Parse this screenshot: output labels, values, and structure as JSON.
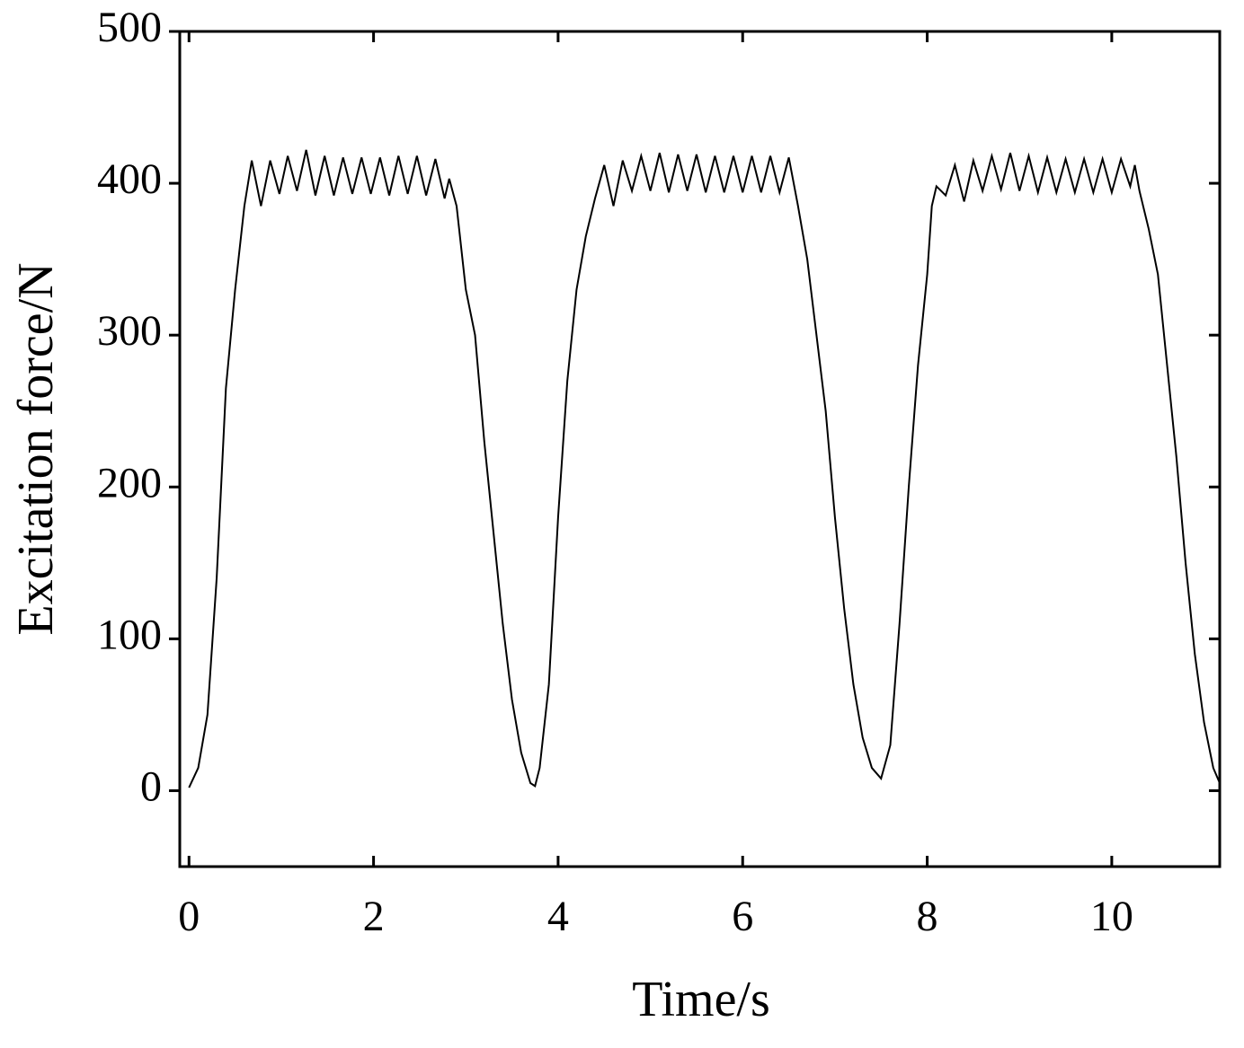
{
  "chart_data": {
    "type": "line",
    "x_label": "Time/s",
    "y_label": "Excitation force/N",
    "x": [
      0,
      0.1,
      0.2,
      0.3,
      0.4,
      0.5,
      0.6,
      0.68,
      0.78,
      0.88,
      0.98,
      1.07,
      1.17,
      1.27,
      1.37,
      1.47,
      1.57,
      1.67,
      1.77,
      1.87,
      1.97,
      2.07,
      2.17,
      2.27,
      2.37,
      2.47,
      2.57,
      2.67,
      2.77,
      2.82,
      2.9,
      3.0,
      3.1,
      3.2,
      3.3,
      3.4,
      3.5,
      3.6,
      3.7,
      3.75,
      3.8,
      3.9,
      4.0,
      4.1,
      4.2,
      4.3,
      4.4,
      4.5,
      4.6,
      4.7,
      4.8,
      4.9,
      5.0,
      5.1,
      5.2,
      5.3,
      5.4,
      5.5,
      5.6,
      5.7,
      5.8,
      5.9,
      6.0,
      6.1,
      6.2,
      6.3,
      6.4,
      6.5,
      6.6,
      6.7,
      6.8,
      6.9,
      7.0,
      7.1,
      7.2,
      7.3,
      7.4,
      7.5,
      7.6,
      7.7,
      7.8,
      7.9,
      8.0,
      8.05,
      8.1,
      8.2,
      8.3,
      8.4,
      8.5,
      8.6,
      8.7,
      8.8,
      8.9,
      9.0,
      9.1,
      9.2,
      9.3,
      9.4,
      9.5,
      9.6,
      9.7,
      9.8,
      9.9,
      10.0,
      10.1,
      10.2,
      10.25,
      10.3,
      10.4,
      10.5,
      10.6,
      10.7,
      10.8,
      10.9,
      11.0,
      11.1,
      11.17
    ],
    "series": [
      {
        "color": "#000000",
        "values": [
          2,
          15,
          50,
          140,
          265,
          330,
          385,
          415,
          385,
          415,
          393,
          418,
          395,
          422,
          392,
          418,
          392,
          417,
          393,
          417,
          393,
          417,
          392,
          418,
          393,
          418,
          392,
          416,
          390,
          403,
          385,
          330,
          300,
          230,
          170,
          110,
          60,
          25,
          5,
          3,
          15,
          70,
          180,
          270,
          330,
          365,
          390,
          412,
          385,
          415,
          395,
          418,
          395,
          420,
          394,
          419,
          395,
          419,
          394,
          418,
          394,
          418,
          394,
          418,
          394,
          418,
          394,
          417,
          385,
          350,
          300,
          250,
          180,
          120,
          70,
          35,
          15,
          8,
          30,
          110,
          200,
          280,
          340,
          385,
          398,
          392,
          412,
          388,
          415,
          395,
          418,
          396,
          420,
          395,
          418,
          394,
          417,
          394,
          416,
          394,
          416,
          394,
          416,
          394,
          416,
          398,
          412,
          395,
          370,
          340,
          280,
          220,
          150,
          90,
          45,
          15,
          5
        ]
      }
    ],
    "xlim": [
      -0.1,
      11.17
    ],
    "ylim": [
      -50,
      500
    ],
    "xticks": [
      0,
      2,
      4,
      6,
      8,
      10
    ],
    "yticks": [
      0,
      100,
      200,
      300,
      400,
      500
    ]
  }
}
